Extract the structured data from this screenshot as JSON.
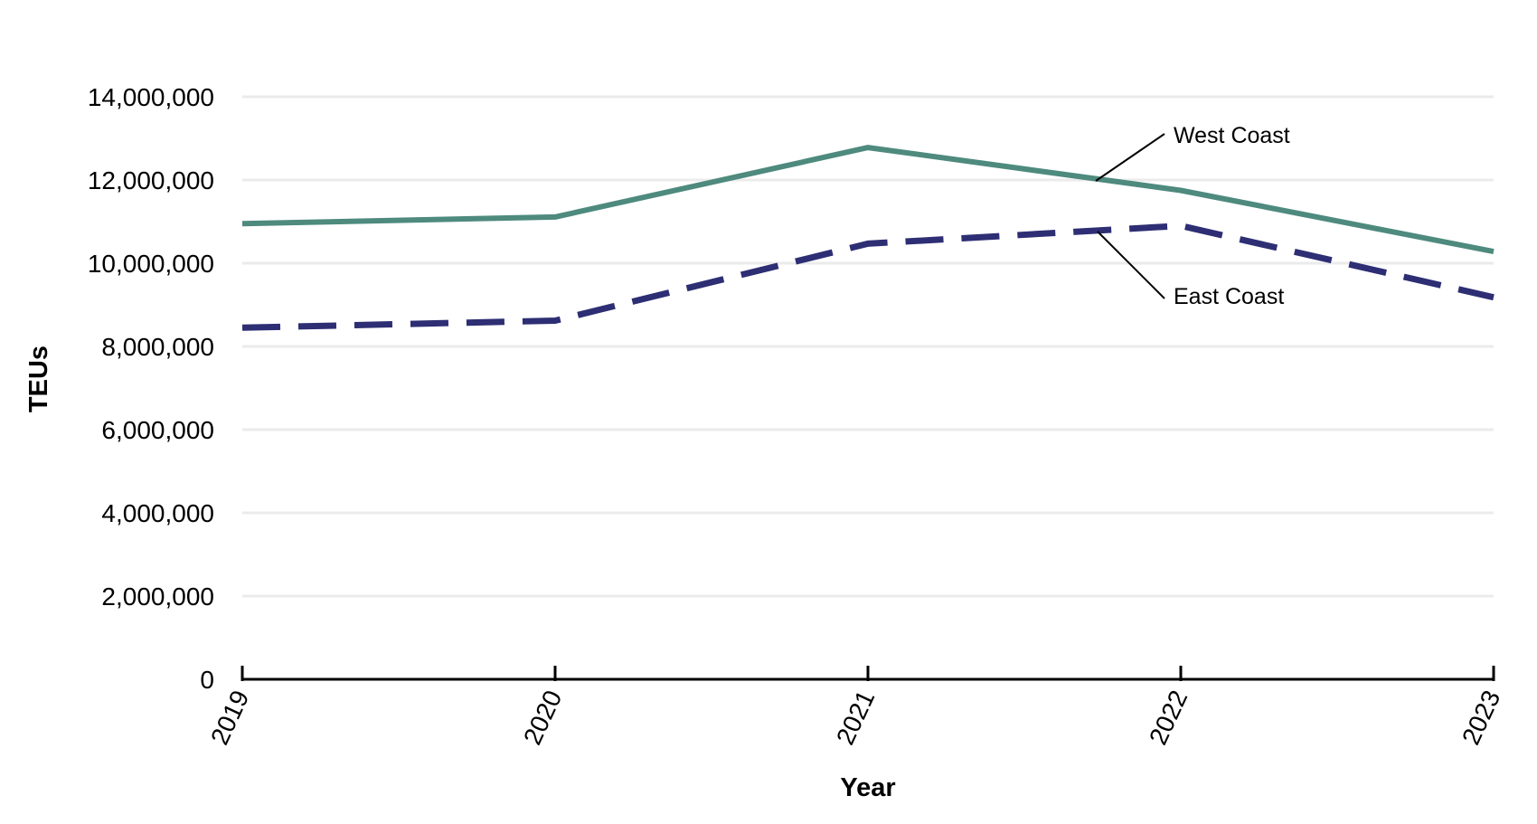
{
  "chart_data": {
    "type": "line",
    "title": "",
    "xlabel": "Year",
    "ylabel": "TEUs",
    "categories": [
      "2019",
      "2020",
      "2021",
      "2022",
      "2023"
    ],
    "y_ticks": [
      "0",
      "2,000,000",
      "4,000,000",
      "6,000,000",
      "8,000,000",
      "10,000,000",
      "12,000,000",
      "14,000,000"
    ],
    "ylim": [
      0,
      14000000
    ],
    "grid": true,
    "series": [
      {
        "name": "West Coast",
        "values": [
          10950000,
          11110000,
          12780000,
          11750000,
          10280000
        ],
        "color": "#4e8a7e",
        "style": "solid"
      },
      {
        "name": "East Coast",
        "values": [
          8450000,
          8620000,
          10470000,
          10900000,
          9180000
        ],
        "color": "#2d2e73",
        "style": "dashed"
      }
    ]
  }
}
